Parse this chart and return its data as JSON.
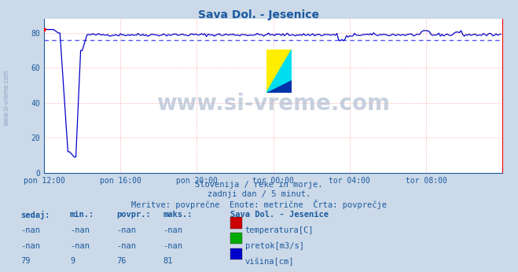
{
  "title": "Sava Dol. - Jesenice",
  "bg_color": "#ccd9e8",
  "plot_bg_color": "#ffffff",
  "title_color": "#1a5aa0",
  "grid_color_h": "#ff9999",
  "grid_color_v": "#ff9999",
  "line_color": "#0000cc",
  "avg_line_color": "#5555ff",
  "x_tick_labels": [
    "pon 12:00",
    "pon 16:00",
    "pon 20:00",
    "tor 00:00",
    "tor 04:00",
    "tor 08:00"
  ],
  "x_tick_positions": [
    0,
    48,
    96,
    144,
    192,
    240
  ],
  "y_ticks": [
    0,
    20,
    40,
    60,
    80
  ],
  "ylim": [
    0,
    88
  ],
  "xlim": [
    0,
    288
  ],
  "avg_value": 76,
  "watermark": "www.si-vreme.com",
  "subtitle1": "Slovenija / reke in morje.",
  "subtitle2": "zadnji dan / 5 minut.",
  "subtitle3": "Meritve: povprečne  Enote: metrične  Črta: povprečje",
  "table_headers": [
    "sedaj:",
    "min.:",
    "povpr.:",
    "maks.:"
  ],
  "table_col1": [
    "-nan",
    "-nan",
    "79"
  ],
  "table_col2": [
    "-nan",
    "-nan",
    "9"
  ],
  "table_col3": [
    "-nan",
    "-nan",
    "76"
  ],
  "table_col4": [
    "-nan",
    "-nan",
    "81"
  ],
  "legend_station": "Sava Dol. - Jesenice",
  "legend_items": [
    "temperatura[C]",
    "pretok[m3/s]",
    "višina[cm]"
  ],
  "legend_colors": [
    "#cc0000",
    "#00aa00",
    "#0000cc"
  ],
  "left_label": "www.si-vreme.com",
  "n_points": 288,
  "icon_yellow": "#ffee00",
  "icon_cyan": "#00ddee",
  "icon_dark_blue": "#0033aa"
}
